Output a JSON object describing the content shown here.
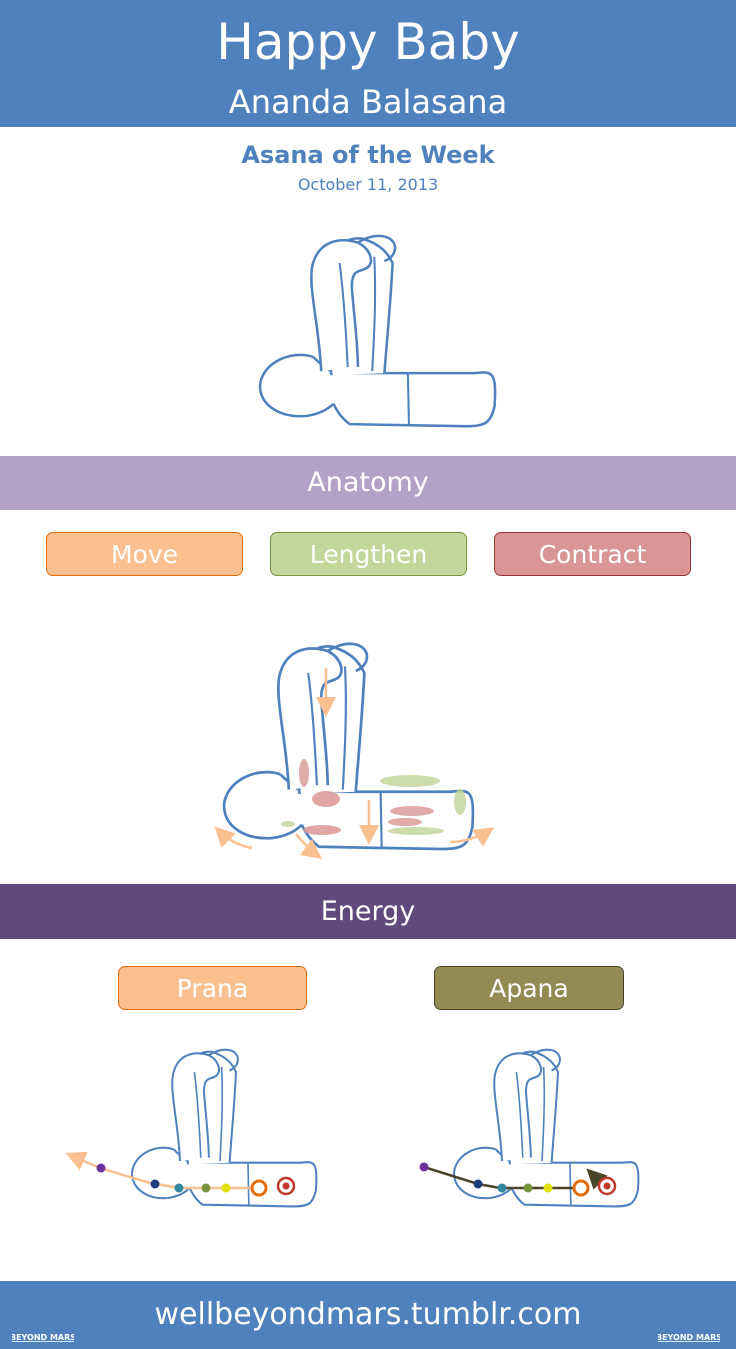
{
  "header": {
    "title": "Happy Baby",
    "sanskrit": "Ananda Balasana"
  },
  "intro": {
    "subtitle": "Asana of the Week",
    "date": "October 11, 2013"
  },
  "anatomy": {
    "heading": "Anatomy",
    "legend": [
      {
        "label": "Move",
        "color": "#fac090",
        "border": "#e46c0a"
      },
      {
        "label": "Lengthen",
        "color": "#c3d69b",
        "border": "#77933c"
      },
      {
        "label": "Contract",
        "color": "#d99694",
        "border": "#953735"
      }
    ]
  },
  "energy": {
    "heading": "Energy",
    "legend": [
      {
        "label": "Prana",
        "color": "#fac090",
        "border": "#e46c0a"
      },
      {
        "label": "Apana",
        "color": "#948a54",
        "border": "#4a452a"
      }
    ]
  },
  "footer": {
    "url": "wellbeyondmars.tumblr.com",
    "logo_text": "BEYOND MARS"
  },
  "colors": {
    "brand": "#4f81bd",
    "outline": "#4f81bd"
  }
}
